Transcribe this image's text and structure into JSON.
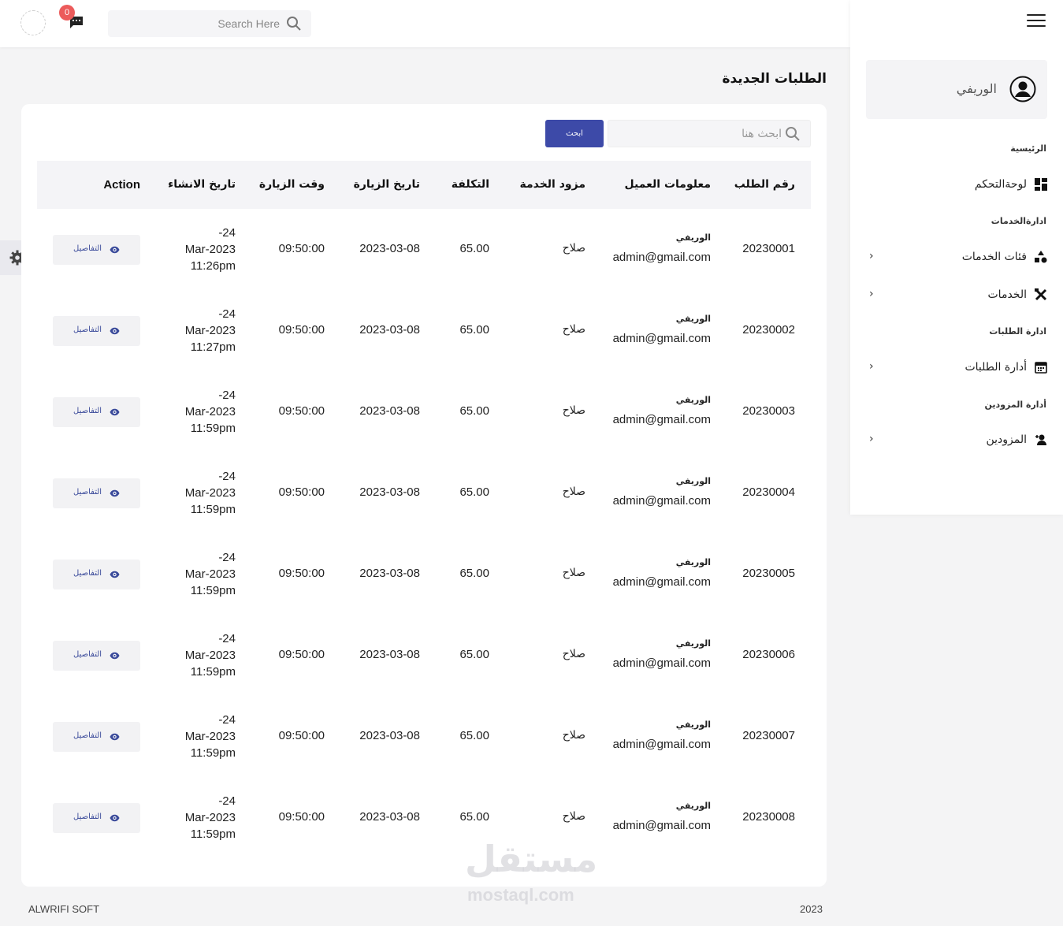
{
  "header": {
    "notification_count": "0",
    "search_placeholder": "Search Here"
  },
  "sidebar": {
    "profile_name": "الوريفي",
    "sections": [
      {
        "title": "الرئيسية"
      },
      {
        "title": "ادارةالخدمات"
      },
      {
        "title": "ادارة الطلبات"
      },
      {
        "title": "أدارة المزودين"
      }
    ],
    "items": [
      {
        "label": "لوحةالتحكم",
        "icon": "dashboard-icon",
        "has_children": false
      },
      {
        "label": "فئات الخدمات",
        "icon": "shapes-icon",
        "has_children": true,
        "chevron": "›"
      },
      {
        "label": "الخدمات",
        "icon": "tools-icon",
        "has_children": true,
        "chevron": "›"
      },
      {
        "label": "أدارة الطلبات",
        "icon": "calendar-icon",
        "has_children": true,
        "chevron": "›"
      },
      {
        "label": "المزودين",
        "icon": "user-plus-icon",
        "has_children": true,
        "chevron": "›"
      }
    ]
  },
  "page": {
    "title": "الطلبات الجديدة",
    "search_placeholder": "ابحث هنا",
    "search_button": "ابحث"
  },
  "table": {
    "headers": {
      "order_no": "رقم الطلب",
      "client_info": "معلومات العميل",
      "provider": "مزود الخدمة",
      "cost": "التكلفة",
      "visit_date": "تاريخ الزيارة",
      "visit_time": "وقت الزيارة",
      "created_at": "تاريخ الانشاء",
      "action": "Action"
    },
    "details_label": "التفاصيل",
    "rows": [
      {
        "order_no": "20230001",
        "client_name": "الوريفي",
        "client_email": "admin@gmail.com",
        "provider": "صلاح",
        "cost": "65.00",
        "visit_date": "2023-03-08",
        "visit_time": "09:50:00",
        "created_l1": "-24",
        "created_l2": "Mar-2023",
        "created_l3": "11:26pm"
      },
      {
        "order_no": "20230002",
        "client_name": "الوريفي",
        "client_email": "admin@gmail.com",
        "provider": "صلاح",
        "cost": "65.00",
        "visit_date": "2023-03-08",
        "visit_time": "09:50:00",
        "created_l1": "-24",
        "created_l2": "Mar-2023",
        "created_l3": "11:27pm"
      },
      {
        "order_no": "20230003",
        "client_name": "الوريفي",
        "client_email": "admin@gmail.com",
        "provider": "صلاح",
        "cost": "65.00",
        "visit_date": "2023-03-08",
        "visit_time": "09:50:00",
        "created_l1": "-24",
        "created_l2": "Mar-2023",
        "created_l3": "11:59pm"
      },
      {
        "order_no": "20230004",
        "client_name": "الوريفي",
        "client_email": "admin@gmail.com",
        "provider": "صلاح",
        "cost": "65.00",
        "visit_date": "2023-03-08",
        "visit_time": "09:50:00",
        "created_l1": "-24",
        "created_l2": "Mar-2023",
        "created_l3": "11:59pm"
      },
      {
        "order_no": "20230005",
        "client_name": "الوريفي",
        "client_email": "admin@gmail.com",
        "provider": "صلاح",
        "cost": "65.00",
        "visit_date": "2023-03-08",
        "visit_time": "09:50:00",
        "created_l1": "-24",
        "created_l2": "Mar-2023",
        "created_l3": "11:59pm"
      },
      {
        "order_no": "20230006",
        "client_name": "الوريفي",
        "client_email": "admin@gmail.com",
        "provider": "صلاح",
        "cost": "65.00",
        "visit_date": "2023-03-08",
        "visit_time": "09:50:00",
        "created_l1": "-24",
        "created_l2": "Mar-2023",
        "created_l3": "11:59pm"
      },
      {
        "order_no": "20230007",
        "client_name": "الوريفي",
        "client_email": "admin@gmail.com",
        "provider": "صلاح",
        "cost": "65.00",
        "visit_date": "2023-03-08",
        "visit_time": "09:50:00",
        "created_l1": "-24",
        "created_l2": "Mar-2023",
        "created_l3": "11:59pm"
      },
      {
        "order_no": "20230008",
        "client_name": "الوريفي",
        "client_email": "admin@gmail.com",
        "provider": "صلاح",
        "cost": "65.00",
        "visit_date": "2023-03-08",
        "visit_time": "09:50:00",
        "created_l1": "-24",
        "created_l2": "Mar-2023",
        "created_l3": "11:59pm"
      }
    ]
  },
  "footer": {
    "left": "ALWRIFI SOFT",
    "right": "2023"
  },
  "watermark": {
    "arabic": "مستقل",
    "latin": "mostaql.com"
  },
  "colors": {
    "primary_button": "#3d4aa8",
    "badge": "#ec5b5b",
    "background": "#f4f4f5",
    "table_header_bg": "#f4f4f7"
  }
}
